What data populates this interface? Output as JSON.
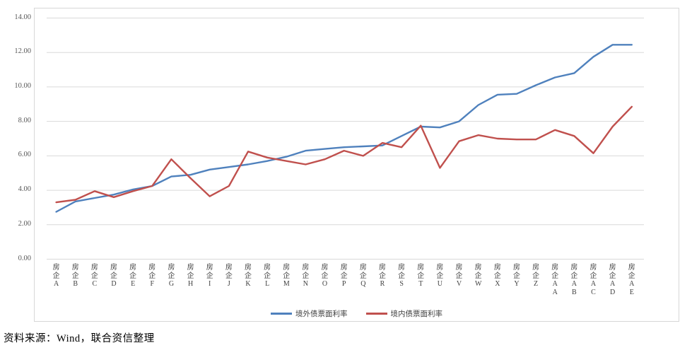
{
  "source_note": "资料来源：Wind，联合资信整理",
  "chart_data": {
    "type": "line",
    "title": "",
    "xlabel": "",
    "ylabel": "",
    "category_prefix": "房企",
    "categories": [
      "A",
      "B",
      "C",
      "D",
      "E",
      "F",
      "G",
      "H",
      "I",
      "J",
      "K",
      "L",
      "M",
      "N",
      "O",
      "P",
      "Q",
      "R",
      "S",
      "T",
      "U",
      "V",
      "W",
      "X",
      "Y",
      "Z",
      "AA",
      "AB",
      "AC",
      "AD",
      "AE"
    ],
    "series": [
      {
        "name": "境外债票面利率",
        "color": "#4f81bd",
        "values": [
          2.75,
          3.35,
          3.55,
          3.75,
          4.05,
          4.25,
          4.8,
          4.9,
          5.2,
          5.35,
          5.5,
          5.7,
          5.95,
          6.3,
          6.4,
          6.5,
          6.55,
          6.6,
          7.15,
          7.7,
          7.65,
          8.0,
          8.95,
          9.55,
          9.6,
          10.1,
          10.55,
          10.8,
          11.75,
          12.45,
          12.45
        ]
      },
      {
        "name": "境内债票面利率",
        "color": "#c0504d",
        "values": [
          3.3,
          3.45,
          3.95,
          3.6,
          3.95,
          4.25,
          5.8,
          4.7,
          3.65,
          4.25,
          6.25,
          5.9,
          5.7,
          5.5,
          5.8,
          6.3,
          6.0,
          6.75,
          6.5,
          7.75,
          5.3,
          6.85,
          7.2,
          7.0,
          6.95,
          6.95,
          7.5,
          7.15,
          6.15,
          7.7,
          8.85
        ]
      }
    ],
    "ylim": [
      0,
      14
    ],
    "ytick_step": 2,
    "yticks": [
      "0.00",
      "2.00",
      "4.00",
      "6.00",
      "8.00",
      "10.00",
      "12.00",
      "14.00"
    ],
    "grid": true,
    "gridline_color": "#d9d9d9",
    "legend_position": "bottom"
  }
}
